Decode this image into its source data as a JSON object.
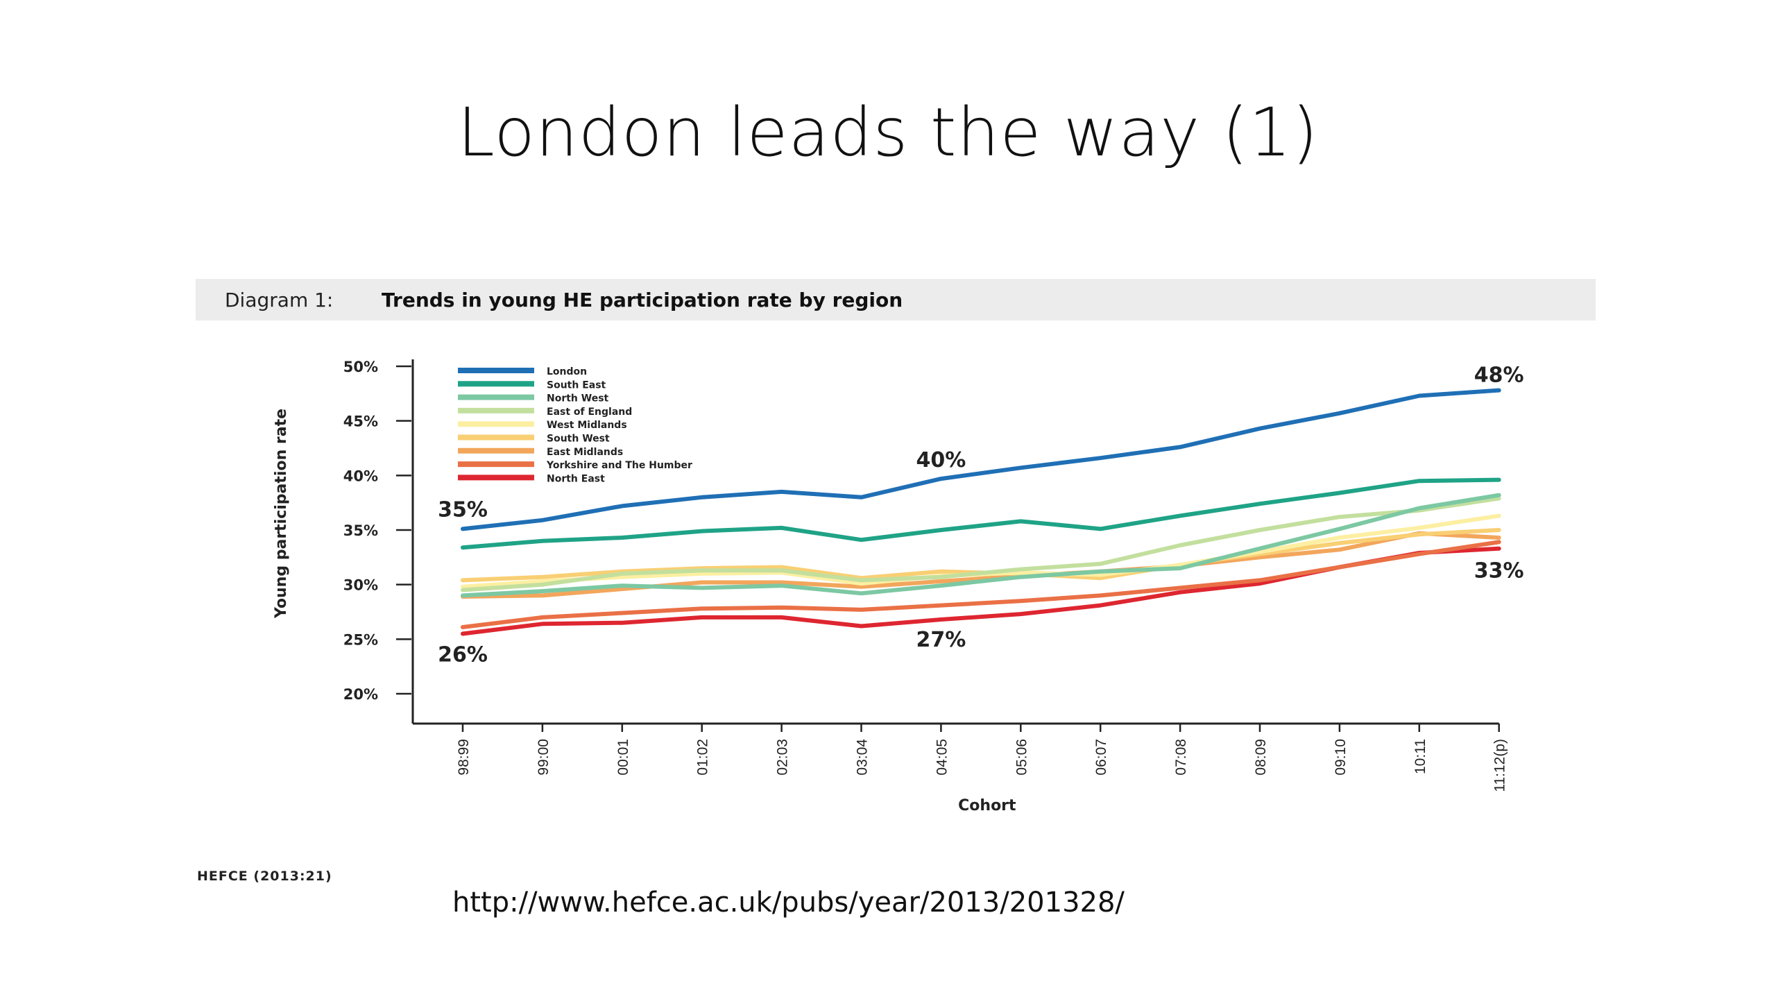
{
  "slide": {
    "title": "London leads the way (1)",
    "source": "HEFCE (2013:21)",
    "url": "http://www.hefce.ac.uk/pubs/year/2013/201328/"
  },
  "diagram": {
    "number_label": "Diagram 1:",
    "title": "Trends in young HE participation rate by region"
  },
  "chart_data": {
    "type": "line",
    "title": "Trends in young HE participation rate by region",
    "xlabel": "Cohort",
    "ylabel": "Young participation rate",
    "ylim": [
      20,
      50
    ],
    "yticks": [
      20,
      25,
      30,
      35,
      40,
      45,
      50
    ],
    "ytick_labels": [
      "20%",
      "25%",
      "30%",
      "35%",
      "40%",
      "45%",
      "50%"
    ],
    "categories": [
      "98:99",
      "99:00",
      "00:01",
      "01:02",
      "02:03",
      "03:04",
      "04:05",
      "05:06",
      "06:07",
      "07:08",
      "08:09",
      "09:10",
      "10:11",
      "11:12(p)"
    ],
    "legend_position": "top-left",
    "grid": false,
    "series": [
      {
        "name": "London",
        "color": "#1f6fb5",
        "values": [
          35.1,
          35.9,
          37.2,
          38.0,
          38.5,
          38.0,
          39.7,
          40.7,
          41.6,
          42.6,
          44.3,
          45.7,
          47.3,
          47.8
        ]
      },
      {
        "name": "South East",
        "color": "#1fa386",
        "values": [
          33.4,
          34.0,
          34.3,
          34.9,
          35.2,
          34.1,
          35.0,
          35.8,
          35.1,
          36.3,
          37.4,
          38.4,
          39.5,
          39.6
        ]
      },
      {
        "name": "North West",
        "color": "#7cc8a3",
        "values": [
          29.0,
          29.4,
          29.9,
          29.7,
          29.9,
          29.2,
          29.9,
          30.7,
          31.2,
          31.5,
          33.3,
          35.1,
          37.0,
          38.2
        ]
      },
      {
        "name": "East of England",
        "color": "#c3df9e",
        "values": [
          29.5,
          30.0,
          31.0,
          31.3,
          31.3,
          30.4,
          30.7,
          31.4,
          31.9,
          33.6,
          35.0,
          36.2,
          36.8,
          37.9
        ]
      },
      {
        "name": "West Midlands",
        "color": "#fcefa2",
        "values": [
          29.8,
          30.3,
          30.7,
          31.0,
          31.1,
          30.1,
          30.8,
          31.1,
          30.9,
          31.8,
          33.0,
          34.3,
          35.2,
          36.3
        ]
      },
      {
        "name": "South West",
        "color": "#f9cf74",
        "values": [
          30.4,
          30.7,
          31.2,
          31.5,
          31.6,
          30.6,
          31.2,
          31.0,
          30.6,
          31.8,
          32.8,
          33.8,
          34.6,
          35.0
        ]
      },
      {
        "name": "East Midlands",
        "color": "#f2a65c",
        "values": [
          28.9,
          29.0,
          29.6,
          30.2,
          30.2,
          29.8,
          30.3,
          30.8,
          31.2,
          31.7,
          32.5,
          33.2,
          34.7,
          34.3
        ]
      },
      {
        "name": "Yorkshire and The Humber",
        "color": "#ea7046",
        "values": [
          26.1,
          27.0,
          27.4,
          27.8,
          27.9,
          27.7,
          28.1,
          28.5,
          29.0,
          29.7,
          30.4,
          31.6,
          32.8,
          33.9
        ]
      },
      {
        "name": "North East",
        "color": "#de2630",
        "values": [
          25.5,
          26.4,
          26.5,
          27.0,
          27.0,
          26.2,
          26.8,
          27.3,
          28.1,
          29.3,
          30.1,
          31.6,
          32.9,
          33.3
        ]
      }
    ],
    "annotations": [
      {
        "text": "35%",
        "cat_index": 0,
        "value": 35.1
      },
      {
        "text": "26%",
        "cat_index": 0,
        "value": 25.5
      },
      {
        "text": "40%",
        "cat_index": 6,
        "value": 39.7
      },
      {
        "text": "27%",
        "cat_index": 6,
        "value": 26.8
      },
      {
        "text": "48%",
        "cat_index": 13,
        "value": 47.8
      },
      {
        "text": "33%",
        "cat_index": 13,
        "value": 33.3
      }
    ]
  }
}
